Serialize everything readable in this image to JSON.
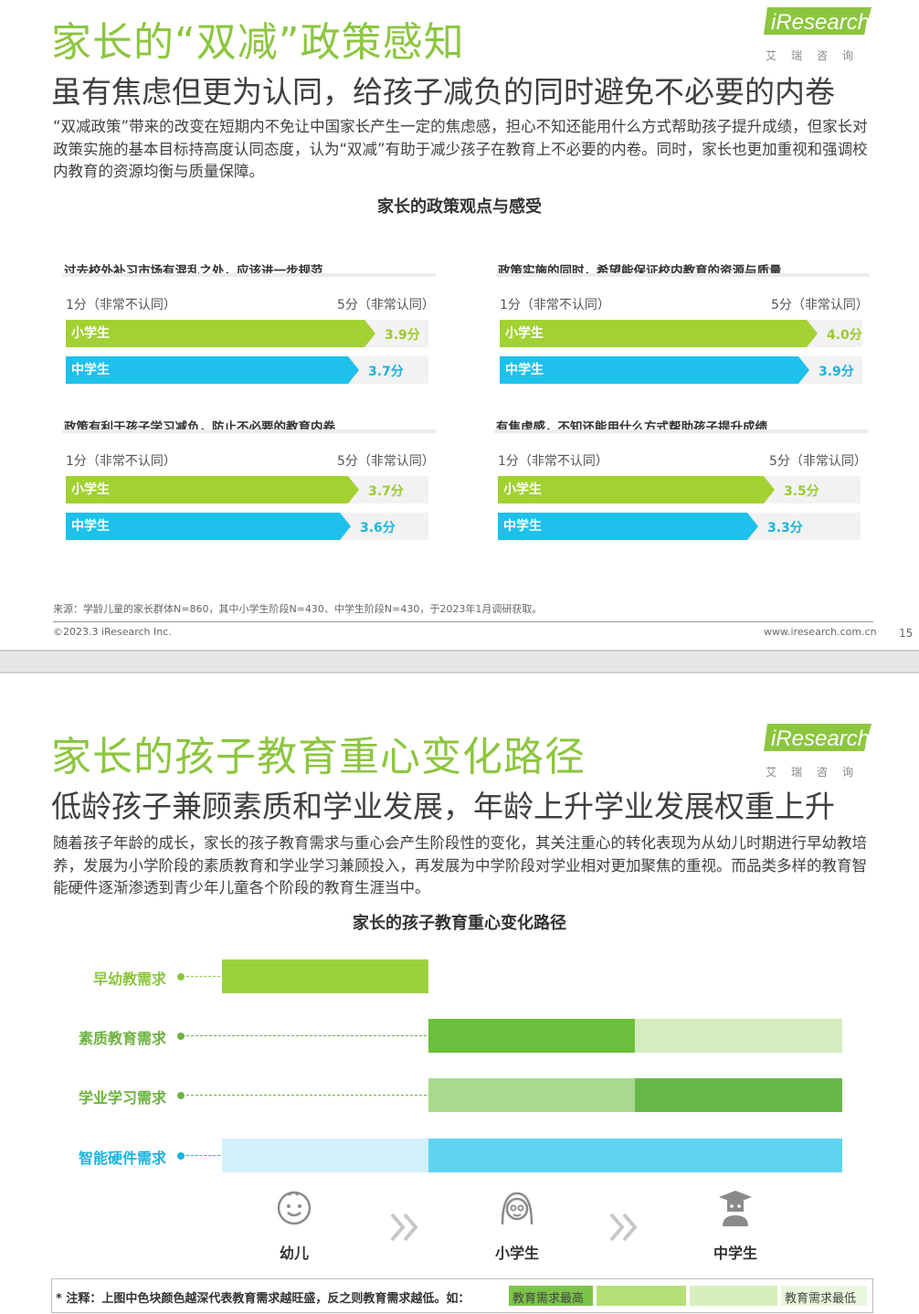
{
  "colors": {
    "brand_green": "#8cc63f",
    "bar_green": "#a2d132",
    "bar_blue": "#1ec1ec",
    "value_green": "#9cc92d",
    "value_blue": "#1ab4e2",
    "deep_green": "#5fb53a",
    "mid_green": "#86cc4c",
    "pale_green": "#cfe9b5",
    "soft_green": "#a6d98c",
    "deep_blue": "#5fd6f2",
    "pale_blue": "#cdeef9"
  },
  "page1": {
    "logo": {
      "brand": "iResearch",
      "sub": "艾瑞咨询"
    },
    "title": "家长的“双减”政策感知",
    "subtitle": "虽有焦虑但更为认同，给孩子减负的同时避免不必要的内卷",
    "body": "“双减政策”带来的改变在短期内不免让中国家长产生一定的焦虑感，担心不知还能用什么方式帮助孩子提升成绩，但家长对政策实施的基本目标持高度认同态度，认为“双减”有助于减少孩子在教育上不必要的内卷。同时，家长也更加重视和强调校内教育的资源均衡与质量保障。",
    "chart_title": "家长的政策观点与感受",
    "panels": [
      {
        "title": "过去校外补习市场有混乱之处，应该进一步规范",
        "scale_min": "1分（非常不认同）",
        "scale_max": "5分（非常认同）",
        "rows": [
          {
            "label": "小学生",
            "value": 3.9,
            "value_text": "3.9分"
          },
          {
            "label": "中学生",
            "value": 3.7,
            "value_text": "3.7分"
          }
        ]
      },
      {
        "title": "政策实施的同时，希望能保证校内教育的资源与质量",
        "scale_min": "1分（非常不认同）",
        "scale_max": "5分（非常认同）",
        "rows": [
          {
            "label": "小学生",
            "value": 4.0,
            "value_text": "4.0分"
          },
          {
            "label": "中学生",
            "value": 3.9,
            "value_text": "3.9分"
          }
        ]
      },
      {
        "title": "政策有利于孩子学习减负，防止不必要的教育内卷",
        "scale_min": "1分（非常不认同）",
        "scale_max": "5分（非常认同）",
        "rows": [
          {
            "label": "小学生",
            "value": 3.7,
            "value_text": "3.7分"
          },
          {
            "label": "中学生",
            "value": 3.6,
            "value_text": "3.6分"
          }
        ]
      },
      {
        "title": "有焦虑感，不知还能用什么方式帮助孩子提升成绩",
        "scale_min": "1分（非常不认同）",
        "scale_max": "5分（非常认同）",
        "rows": [
          {
            "label": "小学生",
            "value": 3.5,
            "value_text": "3.5分"
          },
          {
            "label": "中学生",
            "value": 3.3,
            "value_text": "3.3分"
          }
        ]
      }
    ],
    "source": "来源：学龄儿童的家长群体N=860，其中小学生阶段N=430、中学生阶段N=430，于2023年1月调研获取。",
    "copyright": "©2023.3 iResearch Inc.",
    "website": "www.iresearch.com.cn",
    "page_number": "15"
  },
  "page2": {
    "logo": {
      "brand": "iResearch",
      "sub": "艾瑞咨询"
    },
    "title": "家长的孩子教育重心变化路径",
    "subtitle": "低龄孩子兼顾素质和学业发展，年龄上升学业发展权重上升",
    "body": "随着孩子年龄的成长，家长的孩子教育需求与重心会产生阶段性的变化，其关注重心的转化表现为从幼儿时期进行早幼教培养，发展为小学阶段的素质教育和学业学习兼顾投入，再发展为中学阶段对学业相对更加聚焦的重视。而品类多样的教育智能硬件逐渐渗透到青少年儿童各个阶段的教育生涯当中。",
    "chart_title": "家长的孩子教育重心变化路径",
    "rows": [
      {
        "label": "早幼教需求",
        "color": "#8cc63f",
        "levels": [
          "最高",
          null,
          null
        ]
      },
      {
        "label": "素质教育需求",
        "color": "#6cb33f",
        "levels": [
          null,
          "最高",
          "较低"
        ]
      },
      {
        "label": "学业学习需求",
        "color": "#6cb33f",
        "levels": [
          null,
          "较高",
          "最高"
        ]
      },
      {
        "label": "智能硬件需求",
        "color": "#1ab4e2",
        "levels": [
          "较低",
          "最高",
          "最高"
        ]
      }
    ],
    "stages": [
      "幼儿",
      "小学生",
      "中学生"
    ],
    "legend": {
      "note": "* 注释：上图中色块颜色越深代表教育需求越旺盛，反之则教育需求越低。如：",
      "high": "教育需求最高",
      "low": "教育需求最低"
    }
  }
}
